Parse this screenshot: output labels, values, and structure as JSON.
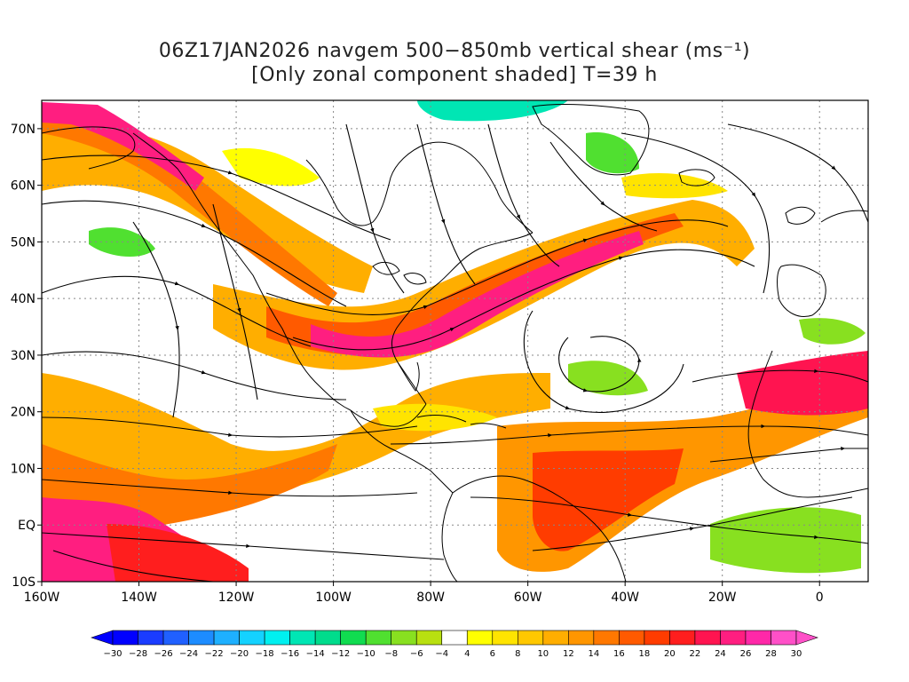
{
  "title": {
    "line1": "06Z17JAN2026 navgem 500−850mb vertical shear (ms⁻¹)",
    "line2": "[Only zonal component shaded] T=39 h"
  },
  "map": {
    "lat_range": [
      -10,
      75
    ],
    "lon_range": [
      -160,
      10
    ],
    "lat_ticks": [
      {
        "value": 70,
        "label": "70N"
      },
      {
        "value": 60,
        "label": "60N"
      },
      {
        "value": 50,
        "label": "50N"
      },
      {
        "value": 40,
        "label": "40N"
      },
      {
        "value": 30,
        "label": "30N"
      },
      {
        "value": 20,
        "label": "20N"
      },
      {
        "value": 10,
        "label": "10N"
      },
      {
        "value": 0,
        "label": "EQ"
      },
      {
        "value": -10,
        "label": "10S"
      }
    ],
    "lon_ticks": [
      {
        "value": -160,
        "label": "160W"
      },
      {
        "value": -140,
        "label": "140W"
      },
      {
        "value": -120,
        "label": "120W"
      },
      {
        "value": -100,
        "label": "100W"
      },
      {
        "value": -80,
        "label": "80W"
      },
      {
        "value": -60,
        "label": "60W"
      },
      {
        "value": -40,
        "label": "40W"
      },
      {
        "value": -20,
        "label": "20W"
      },
      {
        "value": 0,
        "label": "0"
      }
    ]
  },
  "colorbar": {
    "labels": [
      "−30",
      "−28",
      "−26",
      "−24",
      "−22",
      "−20",
      "−18",
      "−16",
      "−14",
      "−12",
      "−10",
      "−8",
      "−6",
      "−4",
      "4",
      "6",
      "8",
      "10",
      "12",
      "14",
      "16",
      "18",
      "20",
      "22",
      "24",
      "26",
      "28",
      "30"
    ],
    "colors": [
      "#0000ff",
      "#1a3cff",
      "#2060ff",
      "#1d8cff",
      "#1eb0ff",
      "#14d2ff",
      "#00f0f0",
      "#00e6b4",
      "#00dc8c",
      "#10dc50",
      "#50e030",
      "#88e020",
      "#b8e010",
      "#ffffff",
      "#ffff00",
      "#ffe400",
      "#ffc800",
      "#ffae00",
      "#ff9600",
      "#ff7800",
      "#ff5a00",
      "#ff3c00",
      "#ff1e1e",
      "#ff1450",
      "#ff1e80",
      "#ff28a8",
      "#ff50c8"
    ]
  },
  "colors": {
    "land_outline": "#000000",
    "streamline": "#000000",
    "grid": "#888888"
  }
}
